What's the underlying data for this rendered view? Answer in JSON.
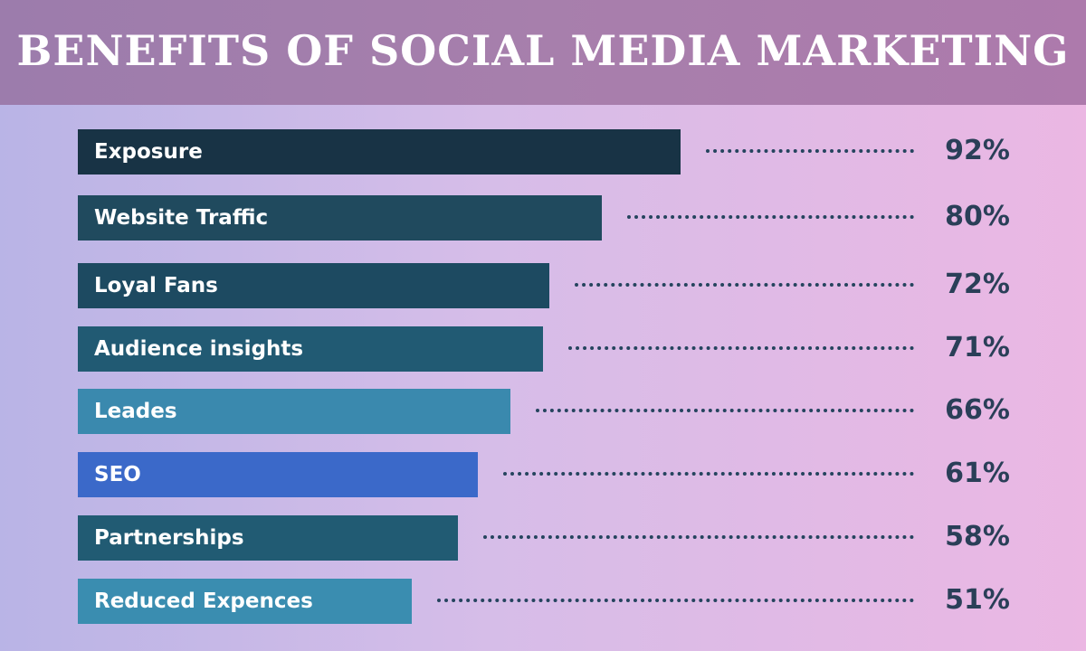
{
  "title": "BENEFITS OF SOCIAL MEDIA MARKETING",
  "chart_data": {
    "type": "bar",
    "orientation": "horizontal",
    "title": "BENEFITS OF SOCIAL MEDIA MARKETING",
    "categories": [
      "Exposure",
      "Website Traffic",
      "Loyal Fans",
      "Audience insights",
      "Leades",
      "SEO",
      "Partnerships",
      "Reduced Expences"
    ],
    "values": [
      92,
      80,
      72,
      71,
      66,
      61,
      58,
      51
    ],
    "value_labels": [
      "92%",
      "80%",
      "72%",
      "71%",
      "66%",
      "61%",
      "58%",
      "51%"
    ],
    "bar_colors": [
      "#183345",
      "#204a5e",
      "#1d4a61",
      "#215a73",
      "#3a89ae",
      "#3b69c9",
      "#215b73",
      "#3a8db0"
    ],
    "grid": false,
    "legend": "none"
  }
}
